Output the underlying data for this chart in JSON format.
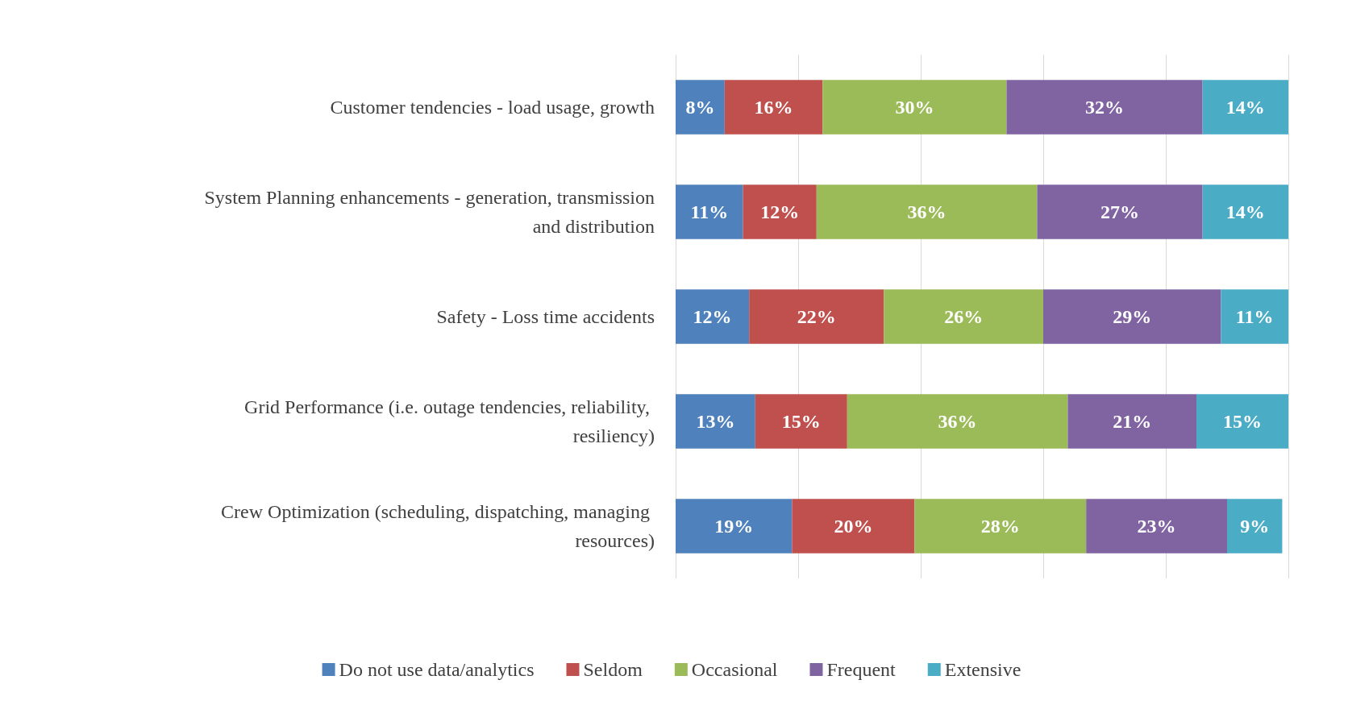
{
  "chart_data": {
    "type": "bar",
    "orientation": "horizontal",
    "stacked": true,
    "categories": [
      "Customer tendencies - load usage, growth",
      "System Planning enhancements - generation, transmission and distribution",
      "Safety - Loss time accidents",
      "Grid Performance (i.e. outage tendencies, reliability, resiliency)",
      "Crew Optimization (scheduling, dispatching, managing resources)"
    ],
    "series": [
      {
        "name": "Do not use data/analytics",
        "color": "#4f81bd",
        "values": [
          8,
          11,
          12,
          13,
          19
        ],
        "value_labels": [
          "8%",
          "11%",
          "12%",
          "13%",
          "19%"
        ]
      },
      {
        "name": "Seldom",
        "color": "#c0504d",
        "values": [
          16,
          12,
          22,
          15,
          20
        ],
        "value_labels": [
          "16%",
          "12%",
          "22%",
          "15%",
          "20%"
        ]
      },
      {
        "name": "Occasional",
        "color": "#9bbb59",
        "values": [
          30,
          36,
          26,
          36,
          28
        ],
        "value_labels": [
          "30%",
          "36%",
          "26%",
          "36%",
          "28%"
        ]
      },
      {
        "name": "Frequent",
        "color": "#8064a2",
        "values": [
          32,
          27,
          29,
          21,
          23
        ],
        "value_labels": [
          "32%",
          "27%",
          "29%",
          "21%",
          "23%"
        ]
      },
      {
        "name": "Extensive",
        "color": "#4bacc6",
        "values": [
          14,
          14,
          11,
          15,
          9
        ],
        "value_labels": [
          "14%",
          "14%",
          "11%",
          "15%",
          "9%"
        ]
      }
    ],
    "tick_labels": "y",
    "grid": "x",
    "legend": "bottom"
  }
}
